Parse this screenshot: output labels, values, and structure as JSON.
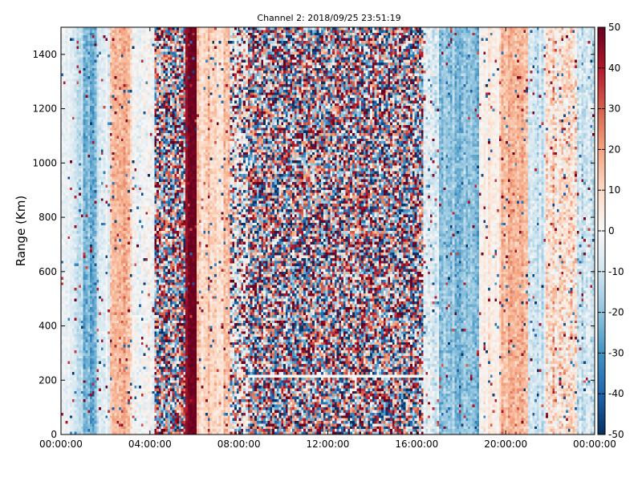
{
  "chart_data": {
    "type": "heatmap",
    "title": "Channel 2: 2018/09/25 23:51:19",
    "xlabel": "",
    "ylabel": "Range (Km)",
    "x_ticks": [
      "00:00:00",
      "04:00:00",
      "08:00:00",
      "12:00:00",
      "16:00:00",
      "20:00:00",
      "00:00:00"
    ],
    "x_range_hours": [
      0,
      24
    ],
    "y_ticks": [
      0,
      200,
      400,
      600,
      800,
      1000,
      1200,
      1400
    ],
    "ylim": [
      0,
      1500
    ],
    "colorbar": {
      "ticks": [
        50,
        40,
        30,
        20,
        10,
        0,
        -10,
        -20,
        -30,
        -40,
        -50
      ],
      "range": [
        -50,
        50
      ],
      "colormap": "RdBu_r",
      "colors": [
        "#053061",
        "#2166ac",
        "#4393c3",
        "#92c5de",
        "#d1e5f0",
        "#f7f7f7",
        "#fddbc7",
        "#f4a582",
        "#d6604d",
        "#b2182b",
        "#67001f"
      ]
    },
    "bands": [
      {
        "from_hour": 0.0,
        "to_hour": 0.6,
        "mean": -4,
        "noise": 5
      },
      {
        "from_hour": 0.6,
        "to_hour": 1.0,
        "mean": -12,
        "noise": 7
      },
      {
        "from_hour": 1.0,
        "to_hour": 1.6,
        "mean": -22,
        "noise": 9
      },
      {
        "from_hour": 1.6,
        "to_hour": 2.2,
        "mean": -8,
        "noise": 7
      },
      {
        "from_hour": 2.2,
        "to_hour": 3.2,
        "mean": 16,
        "noise": 9
      },
      {
        "from_hour": 3.2,
        "to_hour": 4.2,
        "mean": -2,
        "noise": 9
      },
      {
        "from_hour": 4.2,
        "to_hour": 5.6,
        "mean": 0,
        "noise": 80
      },
      {
        "from_hour": 5.6,
        "to_hour": 6.1,
        "mean": 48,
        "noise": 4
      },
      {
        "from_hour": 6.1,
        "to_hour": 7.6,
        "mean": 12,
        "noise": 9
      },
      {
        "from_hour": 7.6,
        "to_hour": 8.4,
        "mean": 0,
        "noise": 60
      },
      {
        "from_hour": 8.4,
        "to_hour": 16.3,
        "mean": 0,
        "noise": 120
      },
      {
        "from_hour": 16.3,
        "to_hour": 17.0,
        "mean": -8,
        "noise": 14
      },
      {
        "from_hour": 17.0,
        "to_hour": 18.8,
        "mean": -20,
        "noise": 9
      },
      {
        "from_hour": 18.8,
        "to_hour": 19.8,
        "mean": 4,
        "noise": 7
      },
      {
        "from_hour": 19.8,
        "to_hour": 21.0,
        "mean": 16,
        "noise": 9
      },
      {
        "from_hour": 21.0,
        "to_hour": 21.8,
        "mean": -10,
        "noise": 9
      },
      {
        "from_hour": 21.8,
        "to_hour": 23.2,
        "mean": 8,
        "noise": 18
      },
      {
        "from_hour": 23.2,
        "to_hour": 24.0,
        "mean": -8,
        "noise": 12
      }
    ],
    "gap_line": {
      "from_hour": 8.4,
      "to_hour": 16.3,
      "range_km": 215
    }
  }
}
